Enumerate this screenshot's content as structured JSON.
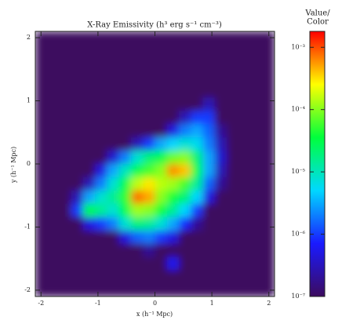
{
  "chart_data": {
    "type": "heatmap",
    "title": "X-Ray Emissivity (h³ erg s⁻¹ cm⁻³)",
    "xlabel": "x (h⁻¹ Mpc)",
    "ylabel": "y (h⁻¹ Mpc)",
    "xlim": [
      -2.1,
      2.1
    ],
    "ylim": [
      -2.1,
      2.1
    ],
    "xticks": [
      -2,
      -1,
      0,
      1,
      2
    ],
    "yticks": [
      -2,
      -1,
      0,
      1,
      2
    ],
    "colorbar_label": [
      "Value/",
      "Color"
    ],
    "clim": [
      1e-07,
      0.0018
    ],
    "colorbar_log": true,
    "cticks": [
      {
        "value": 1e-07,
        "label": "10⁻⁷"
      },
      {
        "value": 1e-06,
        "label": "10⁻⁶"
      },
      {
        "value": 1e-05,
        "label": "10⁻⁵"
      },
      {
        "value": 0.0001,
        "label": "10⁻⁴"
      },
      {
        "value": 0.001,
        "label": "10⁻³"
      }
    ],
    "colormap": [
      "#3c0b5e",
      "#1a1aff",
      "#00d8ff",
      "#00ff3c",
      "#ffff00",
      "#ff0000"
    ],
    "z": [
      [
        1e-07,
        1e-07,
        1e-07,
        1e-07,
        1e-07,
        1e-07,
        1e-07,
        1e-07,
        1e-07,
        1e-07,
        1e-07,
        1e-07,
        1e-07,
        1e-07,
        1e-07,
        1e-07,
        1e-07,
        1e-07,
        1e-07,
        1e-07
      ],
      [
        1e-07,
        1e-07,
        1e-07,
        1e-07,
        1e-07,
        1e-07,
        1e-07,
        1e-07,
        1e-07,
        1e-07,
        1e-07,
        1e-07,
        1e-07,
        1e-07,
        1e-07,
        1e-07,
        1e-07,
        1e-07,
        1e-07,
        1e-07
      ],
      [
        1e-07,
        1e-07,
        1e-07,
        1e-07,
        1e-07,
        1e-07,
        1e-07,
        1e-07,
        1e-07,
        1e-07,
        1e-07,
        1e-07,
        1e-07,
        1e-07,
        1e-07,
        1e-07,
        1e-07,
        1e-07,
        1e-07,
        1e-07
      ],
      [
        1e-07,
        1e-07,
        1e-07,
        1e-07,
        1e-07,
        1e-07,
        1e-07,
        1e-07,
        1e-07,
        1e-07,
        1e-07,
        1e-07,
        1e-07,
        1e-07,
        1e-07,
        1e-07,
        1e-07,
        1e-07,
        1e-07,
        1e-07
      ],
      [
        1e-07,
        1e-07,
        1e-07,
        1e-07,
        1e-07,
        1e-07,
        1e-07,
        1e-07,
        1e-07,
        1e-07,
        1e-07,
        1e-07,
        1e-07,
        1e-07,
        1e-07,
        1e-07,
        1e-07,
        1e-07,
        1e-07,
        1e-07
      ],
      [
        1e-07,
        1e-07,
        1e-07,
        1e-07,
        1e-07,
        1e-07,
        1e-07,
        1e-07,
        1e-07,
        1e-07,
        1e-07,
        1e-07,
        1e-07,
        1e-07,
        3e-07,
        1e-07,
        1e-07,
        1e-07,
        1e-07,
        1e-07
      ],
      [
        1e-07,
        1e-07,
        1e-07,
        1e-07,
        1e-07,
        1e-07,
        1e-07,
        1e-07,
        1e-07,
        1e-07,
        1e-07,
        1e-07,
        3e-07,
        1e-06,
        1e-06,
        1e-07,
        1e-07,
        1e-07,
        1e-07,
        1e-07
      ],
      [
        1e-07,
        1e-07,
        1e-07,
        1e-07,
        1e-07,
        1e-07,
        1e-07,
        1e-07,
        1e-07,
        1e-07,
        1e-07,
        5e-07,
        2e-06,
        3e-06,
        1.5e-06,
        2e-07,
        1e-07,
        1e-07,
        1e-07,
        1e-07
      ],
      [
        1e-07,
        1e-07,
        1e-07,
        1e-07,
        1e-07,
        1e-07,
        1e-07,
        1e-07,
        3e-07,
        1e-06,
        3e-06,
        5e-06,
        8e-06,
        6e-06,
        2e-06,
        3e-07,
        1e-07,
        1e-07,
        1e-07,
        1e-07
      ],
      [
        1e-07,
        1e-07,
        1e-07,
        1e-07,
        1e-07,
        1e-07,
        4e-07,
        2e-06,
        8e-06,
        2e-05,
        3e-05,
        8e-05,
        0.0001,
        2e-05,
        3e-06,
        4e-07,
        1e-07,
        1e-07,
        1e-07,
        1e-07
      ],
      [
        1e-07,
        1e-07,
        1e-07,
        1e-07,
        1e-07,
        5e-07,
        3e-06,
        1e-05,
        3e-05,
        6e-05,
        0.0001,
        0.0006,
        0.0004,
        3e-05,
        3e-06,
        3e-07,
        1e-07,
        1e-07,
        1e-07,
        1e-07
      ],
      [
        1e-07,
        1e-07,
        1e-07,
        1e-07,
        3e-07,
        2e-06,
        8e-06,
        3e-05,
        0.00015,
        0.0003,
        0.00015,
        0.00012,
        6e-05,
        1.5e-05,
        1.5e-06,
        2e-07,
        1e-07,
        1e-07,
        1e-07,
        1e-07
      ],
      [
        1e-07,
        1e-07,
        1e-07,
        3e-07,
        3e-06,
        8e-06,
        1.5e-05,
        5e-05,
        0.0008,
        0.0005,
        0.0001,
        4e-05,
        2e-05,
        5e-06,
        5e-07,
        1e-07,
        1e-07,
        1e-07,
        1e-07,
        1e-07
      ],
      [
        1e-07,
        1e-07,
        1e-07,
        1e-06,
        3e-05,
        1.5e-05,
        8e-06,
        3e-05,
        0.00012,
        0.0001,
        4e-05,
        1.5e-05,
        5e-06,
        1e-06,
        1e-07,
        1e-07,
        1e-07,
        1e-07,
        1e-07,
        1e-07
      ],
      [
        1e-07,
        1e-07,
        1e-07,
        1e-07,
        5e-07,
        1e-06,
        2e-06,
        8e-06,
        2e-05,
        1.5e-05,
        8e-06,
        3e-06,
        8e-07,
        2e-07,
        1e-07,
        1e-07,
        1e-07,
        1e-07,
        1e-07,
        1e-07
      ],
      [
        1e-07,
        1e-07,
        1e-07,
        1e-07,
        1e-07,
        1e-07,
        1e-07,
        5e-07,
        1.5e-06,
        2e-06,
        1e-06,
        5e-07,
        1e-07,
        1e-07,
        1e-07,
        1e-07,
        1e-07,
        1e-07,
        1e-07,
        1e-07
      ],
      [
        1e-07,
        1e-07,
        1e-07,
        1e-07,
        1e-07,
        1e-07,
        1e-07,
        1e-07,
        1e-07,
        2e-07,
        1e-07,
        1e-07,
        1e-07,
        1e-07,
        1e-07,
        1e-07,
        1e-07,
        1e-07,
        1e-07,
        1e-07
      ],
      [
        1e-07,
        1e-07,
        1e-07,
        1e-07,
        1e-07,
        1e-07,
        1e-07,
        1e-07,
        1e-07,
        1e-07,
        1e-07,
        6e-07,
        1e-07,
        1e-07,
        1e-07,
        1e-07,
        1e-07,
        1e-07,
        1e-07,
        1e-07
      ],
      [
        1e-07,
        1e-07,
        1e-07,
        1e-07,
        1e-07,
        1e-07,
        1e-07,
        1e-07,
        1e-07,
        1e-07,
        1e-07,
        1e-07,
        1e-07,
        1e-07,
        1e-07,
        1e-07,
        1e-07,
        1e-07,
        1e-07,
        1e-07
      ],
      [
        1e-07,
        1e-07,
        1e-07,
        1e-07,
        1e-07,
        1e-07,
        1e-07,
        1e-07,
        1e-07,
        1e-07,
        1e-07,
        1e-07,
        1e-07,
        1e-07,
        1e-07,
        1e-07,
        1e-07,
        1e-07,
        1e-07,
        1e-07
      ]
    ]
  }
}
